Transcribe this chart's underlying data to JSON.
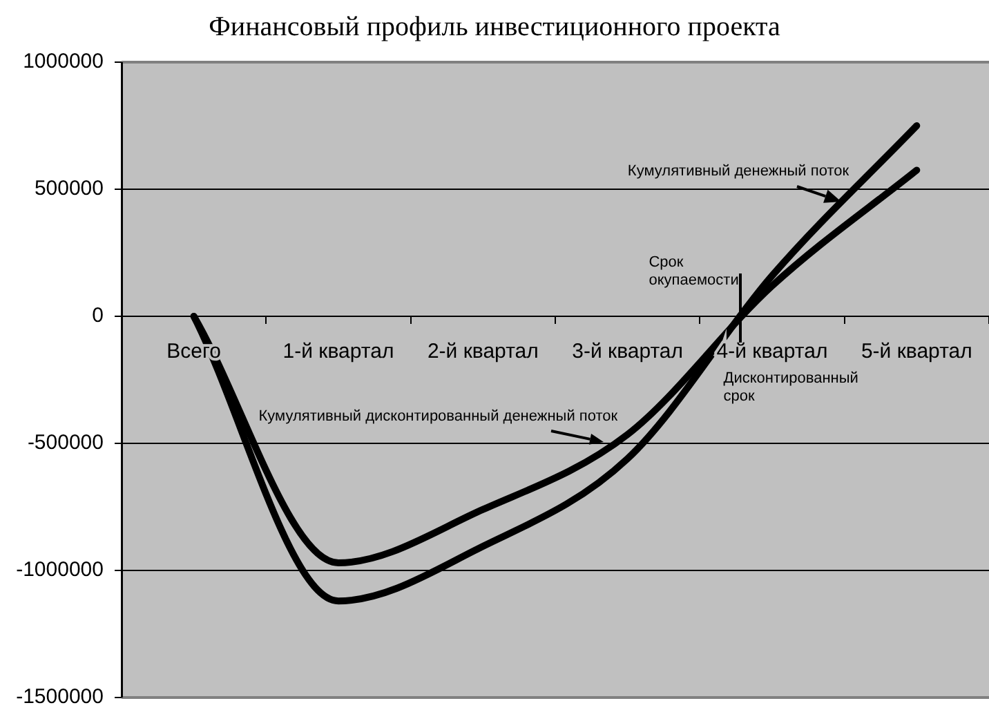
{
  "chart_data": {
    "type": "line",
    "title": "Финансовый профиль инвестиционного проекта",
    "categories": [
      "Всего",
      "1-й квартал",
      "2-й квартал",
      "3-й квартал",
      "4-й квартал",
      "5-й квартал"
    ],
    "series": [
      {
        "name": "Кумулятивный денежный поток",
        "color": "#000000",
        "values": [
          0,
          -1120000,
          -905000,
          -560000,
          160000,
          750000
        ]
      },
      {
        "name": "Кумулятивный дисконтированный денежный поток",
        "color": "#000000",
        "values": [
          0,
          -970000,
          -760000,
          -465000,
          120000,
          575000
        ]
      }
    ],
    "ylim": [
      -1500000,
      1000000
    ],
    "yticks": [
      -1500000,
      -1000000,
      -500000,
      0,
      500000,
      1000000
    ],
    "grid": "y",
    "legend": false,
    "marker": "none",
    "annotations": [
      "Срок окупаемости",
      "Дисконтированный срок"
    ]
  }
}
